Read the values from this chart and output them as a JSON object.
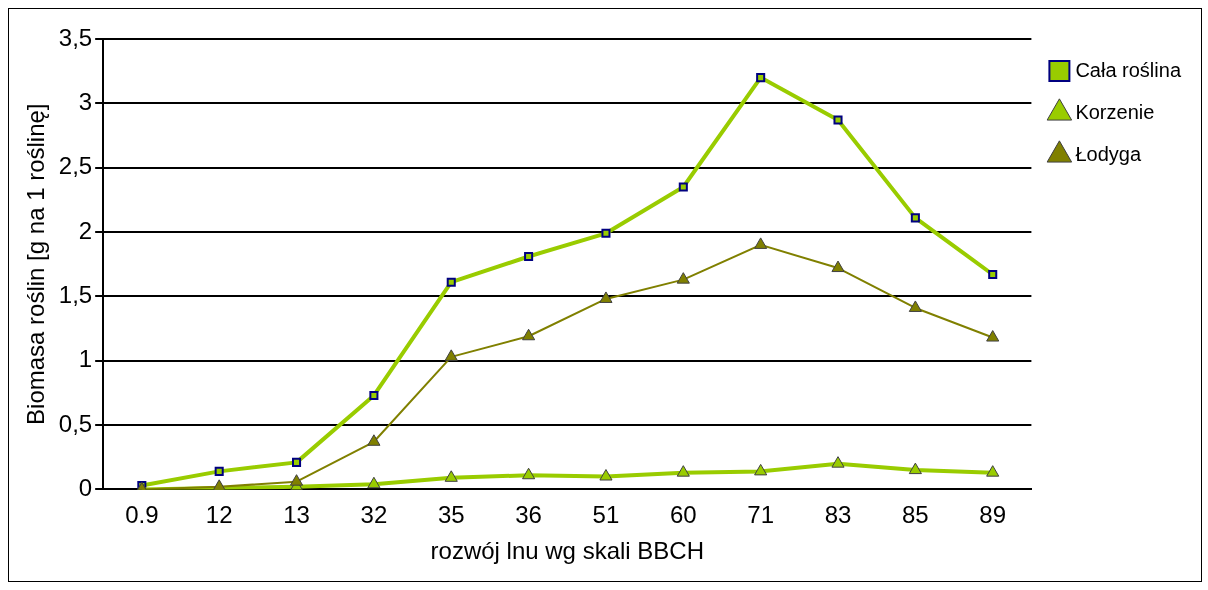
{
  "chart_data": {
    "type": "line",
    "xlabel": "rozwój lnu wg skali BBCH",
    "ylabel": "Biomasa roślin [g na 1 roślinę]",
    "categories": [
      "0.9",
      "12",
      "13",
      "32",
      "35",
      "36",
      "51",
      "60",
      "71",
      "83",
      "85",
      "89"
    ],
    "series": [
      {
        "name": "Cała roślina",
        "color": "#99cc00",
        "marker": "square",
        "values": [
          0.03,
          0.14,
          0.21,
          0.73,
          1.61,
          1.81,
          1.99,
          2.35,
          3.2,
          2.87,
          2.11,
          1.67
        ]
      },
      {
        "name": "Korzenie",
        "color": "#99cc00",
        "marker": "triangle",
        "values": [
          0,
          0.01,
          0.02,
          0.04,
          0.09,
          0.11,
          0.1,
          0.13,
          0.14,
          0.2,
          0.15,
          0.13
        ]
      },
      {
        "name": "Łodyga",
        "color": "#808000",
        "marker": "triangle",
        "values": [
          0,
          0.02,
          0.06,
          0.37,
          1.03,
          1.19,
          1.48,
          1.63,
          1.9,
          1.72,
          1.41,
          1.18
        ]
      }
    ],
    "ylim": [
      0,
      3.5
    ],
    "yticks": [
      0,
      {
        "value": 0.5,
        "label": "0,5"
      },
      1,
      {
        "value": 1.5,
        "label": "1,5"
      },
      2,
      {
        "value": 2.5,
        "label": "2,5"
      },
      3,
      {
        "value": 3.5,
        "label": "3,5"
      }
    ],
    "grid": "y",
    "legend": "top right",
    "line_style": "solid"
  }
}
